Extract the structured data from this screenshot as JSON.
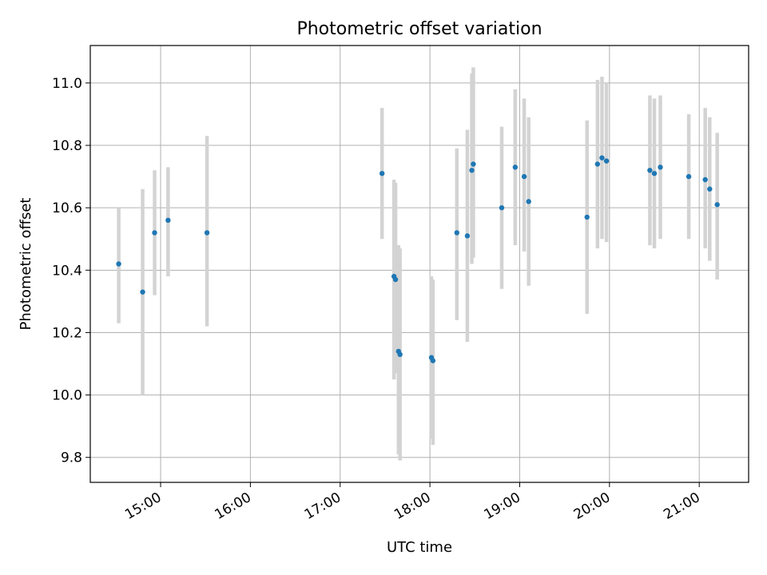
{
  "chart_data": {
    "type": "scatter",
    "title": "Photometric offset variation",
    "xlabel": "UTC time",
    "ylabel": "Photometric offset",
    "xlim": [
      "14:13",
      "21:33"
    ],
    "ylim": [
      9.72,
      11.12
    ],
    "grid": true,
    "x_ticks": [
      "15:00",
      "16:00",
      "17:00",
      "18:00",
      "19:00",
      "20:00",
      "21:00"
    ],
    "y_ticks": [
      "9.8",
      "10.0",
      "10.2",
      "10.4",
      "10.6",
      "10.8",
      "11.0"
    ],
    "errorbar_color": "#d3d3d3",
    "marker_color": "#1f77b4",
    "points": [
      {
        "t": "14:32",
        "y": 10.42,
        "lo": 10.23,
        "hi": 10.6
      },
      {
        "t": "14:48",
        "y": 10.33,
        "lo": 10.0,
        "hi": 10.66
      },
      {
        "t": "14:56",
        "y": 10.52,
        "lo": 10.32,
        "hi": 10.72
      },
      {
        "t": "15:05",
        "y": 10.56,
        "lo": 10.38,
        "hi": 10.73
      },
      {
        "t": "15:31",
        "y": 10.52,
        "lo": 10.22,
        "hi": 10.83
      },
      {
        "t": "17:28",
        "y": 10.71,
        "lo": 10.5,
        "hi": 10.92
      },
      {
        "t": "17:36",
        "y": 10.38,
        "lo": 10.05,
        "hi": 10.69
      },
      {
        "t": "17:37",
        "y": 10.37,
        "lo": 10.07,
        "hi": 10.68
      },
      {
        "t": "17:39",
        "y": 10.14,
        "lo": 9.81,
        "hi": 10.48
      },
      {
        "t": "17:40",
        "y": 10.13,
        "lo": 9.79,
        "hi": 10.47
      },
      {
        "t": "18:01",
        "y": 10.12,
        "lo": 9.86,
        "hi": 10.38
      },
      {
        "t": "18:02",
        "y": 10.11,
        "lo": 9.84,
        "hi": 10.37
      },
      {
        "t": "18:18",
        "y": 10.52,
        "lo": 10.24,
        "hi": 10.79
      },
      {
        "t": "18:25",
        "y": 10.51,
        "lo": 10.17,
        "hi": 10.85
      },
      {
        "t": "18:28",
        "y": 10.72,
        "lo": 10.42,
        "hi": 11.03
      },
      {
        "t": "18:29",
        "y": 10.74,
        "lo": 10.44,
        "hi": 11.05
      },
      {
        "t": "18:48",
        "y": 10.6,
        "lo": 10.34,
        "hi": 10.86
      },
      {
        "t": "18:57",
        "y": 10.73,
        "lo": 10.48,
        "hi": 10.98
      },
      {
        "t": "19:03",
        "y": 10.7,
        "lo": 10.46,
        "hi": 10.95
      },
      {
        "t": "19:06",
        "y": 10.62,
        "lo": 10.35,
        "hi": 10.89
      },
      {
        "t": "19:45",
        "y": 10.57,
        "lo": 10.26,
        "hi": 10.88
      },
      {
        "t": "19:52",
        "y": 10.74,
        "lo": 10.47,
        "hi": 11.01
      },
      {
        "t": "19:55",
        "y": 10.76,
        "lo": 10.5,
        "hi": 11.02
      },
      {
        "t": "19:58",
        "y": 10.75,
        "lo": 10.49,
        "hi": 11.0
      },
      {
        "t": "20:27",
        "y": 10.72,
        "lo": 10.48,
        "hi": 10.96
      },
      {
        "t": "20:30",
        "y": 10.71,
        "lo": 10.47,
        "hi": 10.95
      },
      {
        "t": "20:34",
        "y": 10.73,
        "lo": 10.5,
        "hi": 10.96
      },
      {
        "t": "20:53",
        "y": 10.7,
        "lo": 10.5,
        "hi": 10.9
      },
      {
        "t": "21:04",
        "y": 10.69,
        "lo": 10.47,
        "hi": 10.92
      },
      {
        "t": "21:07",
        "y": 10.66,
        "lo": 10.43,
        "hi": 10.89
      },
      {
        "t": "21:12",
        "y": 10.61,
        "lo": 10.37,
        "hi": 10.84
      }
    ]
  }
}
